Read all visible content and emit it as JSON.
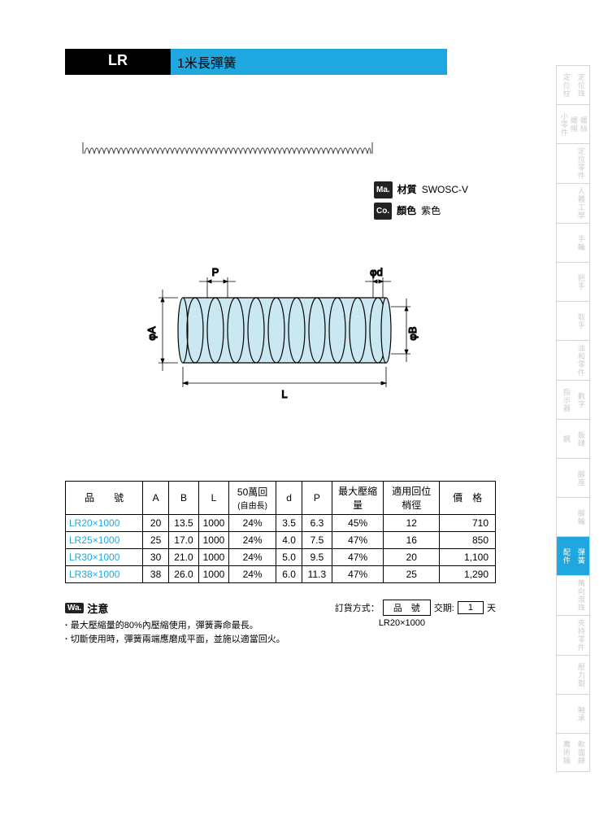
{
  "header": {
    "code": "LR",
    "title": "1米長彈簧"
  },
  "info": {
    "material_badge": "Ma.",
    "material_label": "材質",
    "material_value": "SWOSC-V",
    "color_badge": "Co.",
    "color_label": "顏色",
    "color_value": "紫色"
  },
  "diagram": {
    "dim_P": "P",
    "dim_d": "φd",
    "dim_A": "φA",
    "dim_B": "φB",
    "dim_L": "L",
    "coil_fill": "#c9e8f2",
    "line_color": "#000"
  },
  "table": {
    "headers": [
      "品　　號",
      "A",
      "B",
      "L",
      "50萬回\n(自由長)",
      "d",
      "P",
      "最大壓縮量",
      "適用回位梢徑",
      "價　格"
    ],
    "rows": [
      {
        "partno": "LR20×1000",
        "A": "20",
        "B": "13.5",
        "L": "1000",
        "cycle": "24%",
        "d": "3.5",
        "P": "6.3",
        "compress": "45%",
        "pin": "12",
        "price": "710"
      },
      {
        "partno": "LR25×1000",
        "A": "25",
        "B": "17.0",
        "L": "1000",
        "cycle": "24%",
        "d": "4.0",
        "P": "7.5",
        "compress": "47%",
        "pin": "16",
        "price": "850"
      },
      {
        "partno": "LR30×1000",
        "A": "30",
        "B": "21.0",
        "L": "1000",
        "cycle": "24%",
        "d": "5.0",
        "P": "9.5",
        "compress": "47%",
        "pin": "20",
        "price": "1,100"
      },
      {
        "partno": "LR38×1000",
        "A": "38",
        "B": "26.0",
        "L": "1000",
        "cycle": "24%",
        "d": "6.0",
        "P": "11.3",
        "compress": "47%",
        "pin": "25",
        "price": "1,290"
      }
    ]
  },
  "notes": {
    "badge": "Wa.",
    "title": "注意",
    "bullets": [
      "最大壓縮量的80%內壓縮使用，彈簧壽命最長。",
      "切斷使用時，彈簧兩端應磨成平面，並施以適當回火。"
    ]
  },
  "order": {
    "label": "訂貨方式：",
    "col1": "品　號",
    "col2_label": "交期:",
    "col2_value": "1",
    "col2_unit": "天",
    "example": "LR20×1000"
  },
  "sidebar": {
    "items": [
      {
        "cols": [
          "定位柱",
          "定位珠"
        ]
      },
      {
        "cols": [
          "小零件",
          "螺帽",
          "螺絲"
        ]
      },
      {
        "cols": [
          "",
          "定位零件"
        ]
      },
      {
        "cols": [
          "",
          "人體工學"
        ]
      },
      {
        "cols": [
          "",
          "手輪"
        ]
      },
      {
        "cols": [
          "",
          "把手"
        ]
      },
      {
        "cols": [
          "",
          "取手"
        ]
      },
      {
        "cols": [
          "",
          "油和零件"
        ]
      },
      {
        "cols": [
          "指示器",
          "數字"
        ]
      },
      {
        "cols": [
          "鋼",
          "鈑鏈"
        ]
      },
      {
        "cols": [
          "",
          "腳座"
        ]
      },
      {
        "cols": [
          "",
          "腳輪"
        ]
      },
      {
        "cols": [
          "配件",
          "彈簧"
        ],
        "active": true
      },
      {
        "cols": [
          "",
          "萬向滾珠"
        ]
      },
      {
        "cols": [
          "",
          "夾持零件"
        ]
      },
      {
        "cols": [
          "",
          "壓力鉗"
        ]
      },
      {
        "cols": [
          "",
          "軸承"
        ]
      },
      {
        "cols": [
          "魔術鑰",
          "軟面錘"
        ]
      }
    ]
  }
}
